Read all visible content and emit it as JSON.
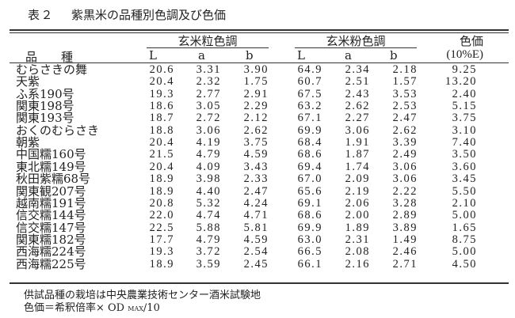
{
  "title": {
    "label": "表２",
    "text": "紫黒米の品種別色調及び色価"
  },
  "header": {
    "variety": "品　　種",
    "grain_group": "玄米粒色調",
    "flour_group": "玄米粉色調",
    "color_value": "色価",
    "color_value_unit": "(10%E)",
    "L": "L",
    "a": "a",
    "b": "b"
  },
  "rows": [
    {
      "name": "むらさきの舞",
      "gL": "20.6",
      "ga": "3.31",
      "gb": "3.90",
      "fL": "64.9",
      "fa": "2.34",
      "fb": "2.18",
      "cv": "9.25"
    },
    {
      "name": "天紫",
      "gL": "20.4",
      "ga": "2.32",
      "gb": "1.75",
      "fL": "60.7",
      "fa": "2.51",
      "fb": "1.57",
      "cv": "13.20"
    },
    {
      "name": "ふ系190号",
      "gL": "19.3",
      "ga": "2.77",
      "gb": "2.91",
      "fL": "67.5",
      "fa": "2.43",
      "fb": "3.53",
      "cv": "2.40"
    },
    {
      "name": "関東198号",
      "gL": "18.6",
      "ga": "3.05",
      "gb": "2.29",
      "fL": "63.2",
      "fa": "2.62",
      "fb": "2.53",
      "cv": "5.15"
    },
    {
      "name": "関東193号",
      "gL": "18.7",
      "ga": "2.72",
      "gb": "2.12",
      "fL": "67.1",
      "fa": "2.27",
      "fb": "2.47",
      "cv": "3.75"
    },
    {
      "name": "おくのむらさき",
      "gL": "18.8",
      "ga": "3.06",
      "gb": "2.62",
      "fL": "69.9",
      "fa": "3.06",
      "fb": "2.62",
      "cv": "3.10"
    },
    {
      "name": "朝紫",
      "gL": "20.4",
      "ga": "4.19",
      "gb": "3.75",
      "fL": "68.4",
      "fa": "1.91",
      "fb": "3.39",
      "cv": "7.40"
    },
    {
      "name": "中国糯160号",
      "gL": "21.5",
      "ga": "4.79",
      "gb": "4.59",
      "fL": "68.6",
      "fa": "1.87",
      "fb": "2.49",
      "cv": "3.50"
    },
    {
      "name": "東北糯149号",
      "gL": "20.4",
      "ga": "4.09",
      "gb": "3.43",
      "fL": "69.4",
      "fa": "1.74",
      "fb": "3.06",
      "cv": "3.60"
    },
    {
      "name": "秋田紫糯68号",
      "gL": "18.9",
      "ga": "3.98",
      "gb": "2.33",
      "fL": "67.0",
      "fa": "2.09",
      "fb": "3.06",
      "cv": "3.45"
    },
    {
      "name": "関東観207号",
      "gL": "18.9",
      "ga": "4.40",
      "gb": "2.47",
      "fL": "65.6",
      "fa": "2.19",
      "fb": "2.22",
      "cv": "5.50"
    },
    {
      "name": "越南糯191号",
      "gL": "20.8",
      "ga": "5.32",
      "gb": "4.24",
      "fL": "69.1",
      "fa": "2.06",
      "fb": "3.28",
      "cv": "2.10"
    },
    {
      "name": "信交糯144号",
      "gL": "22.0",
      "ga": "4.74",
      "gb": "4.71",
      "fL": "68.6",
      "fa": "2.00",
      "fb": "2.89",
      "cv": "5.00"
    },
    {
      "name": "信交糯147号",
      "gL": "22.5",
      "ga": "5.88",
      "gb": "5.81",
      "fL": "69.9",
      "fa": "1.89",
      "fb": "3.89",
      "cv": "1.65"
    },
    {
      "name": "関東糯182号",
      "gL": "17.7",
      "ga": "4.79",
      "gb": "4.59",
      "fL": "63.0",
      "fa": "2.31",
      "fb": "1.49",
      "cv": "8.75"
    },
    {
      "name": "西海糯224号",
      "gL": "19.3",
      "ga": "3.72",
      "gb": "2.54",
      "fL": "66.5",
      "fa": "2.08",
      "fb": "2.46",
      "cv": "5.00"
    },
    {
      "name": "西海糯225号",
      "gL": "18.9",
      "ga": "3.59",
      "gb": "2.45",
      "fL": "66.1",
      "fa": "2.16",
      "fb": "2.71",
      "cv": "4.50"
    }
  ],
  "footnotes": {
    "note1": "供試品種の栽培は中央農業技術センター酒米試験地",
    "note2_prefix": "色価＝希釈倍率× OD ",
    "note2_sub": "MAX",
    "note2_suffix": "/10"
  }
}
